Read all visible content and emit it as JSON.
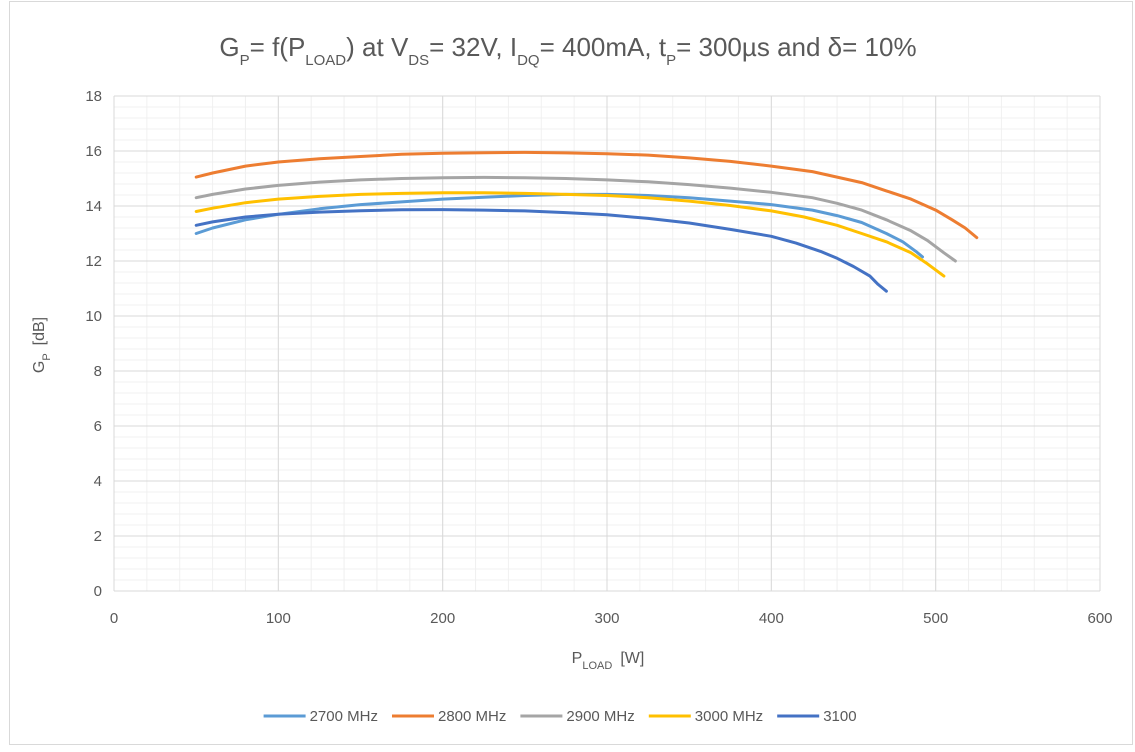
{
  "chart_data": {
    "type": "line",
    "title": {
      "parts": [
        {
          "t": "G",
          "sub": false
        },
        {
          "t": "P",
          "sub": true
        },
        {
          "t": "= f(P",
          "sub": false
        },
        {
          "t": "LOAD",
          "sub": true
        },
        {
          "t": ") at V",
          "sub": false
        },
        {
          "t": "DS",
          "sub": true
        },
        {
          "t": "= 32V, I",
          "sub": false
        },
        {
          "t": "DQ",
          "sub": true
        },
        {
          "t": "= 400mA, t",
          "sub": false
        },
        {
          "t": "P",
          "sub": true
        },
        {
          "t": "= 300µs and δ= 10%",
          "sub": false
        }
      ]
    },
    "xlabel": {
      "main": "P",
      "sub": "LOAD",
      "unit": "[W]"
    },
    "ylabel": {
      "main": "G",
      "sub": "P",
      "unit": "[dB]"
    },
    "xlim": [
      0,
      600
    ],
    "ylim": [
      0,
      18
    ],
    "x_ticks": [
      0,
      100,
      200,
      300,
      400,
      500,
      600
    ],
    "y_ticks": [
      0,
      2,
      4,
      6,
      8,
      10,
      12,
      14,
      16,
      18
    ],
    "grid": true,
    "minor_grid": true,
    "legend_position": "bottom",
    "series": [
      {
        "name": "2700 MHz",
        "color": "#5B9BD5",
        "points": [
          [
            50,
            13.0
          ],
          [
            60,
            13.2
          ],
          [
            80,
            13.5
          ],
          [
            100,
            13.7
          ],
          [
            125,
            13.9
          ],
          [
            150,
            14.05
          ],
          [
            175,
            14.15
          ],
          [
            200,
            14.25
          ],
          [
            225,
            14.32
          ],
          [
            250,
            14.38
          ],
          [
            275,
            14.42
          ],
          [
            300,
            14.42
          ],
          [
            325,
            14.38
          ],
          [
            350,
            14.3
          ],
          [
            375,
            14.18
          ],
          [
            400,
            14.05
          ],
          [
            425,
            13.85
          ],
          [
            440,
            13.65
          ],
          [
            455,
            13.4
          ],
          [
            470,
            13.0
          ],
          [
            480,
            12.7
          ],
          [
            488,
            12.35
          ],
          [
            492,
            12.15
          ]
        ]
      },
      {
        "name": "2800 MHz",
        "color": "#ED7D31",
        "points": [
          [
            50,
            15.05
          ],
          [
            60,
            15.2
          ],
          [
            80,
            15.45
          ],
          [
            100,
            15.6
          ],
          [
            125,
            15.72
          ],
          [
            150,
            15.8
          ],
          [
            175,
            15.88
          ],
          [
            200,
            15.92
          ],
          [
            225,
            15.94
          ],
          [
            250,
            15.95
          ],
          [
            275,
            15.93
          ],
          [
            300,
            15.9
          ],
          [
            325,
            15.85
          ],
          [
            350,
            15.75
          ],
          [
            375,
            15.62
          ],
          [
            400,
            15.45
          ],
          [
            425,
            15.25
          ],
          [
            440,
            15.05
          ],
          [
            455,
            14.85
          ],
          [
            470,
            14.55
          ],
          [
            485,
            14.25
          ],
          [
            500,
            13.85
          ],
          [
            510,
            13.5
          ],
          [
            518,
            13.2
          ],
          [
            525,
            12.85
          ]
        ]
      },
      {
        "name": "2900 MHz",
        "color": "#A5A5A5",
        "points": [
          [
            50,
            14.3
          ],
          [
            60,
            14.42
          ],
          [
            80,
            14.62
          ],
          [
            100,
            14.75
          ],
          [
            125,
            14.87
          ],
          [
            150,
            14.95
          ],
          [
            175,
            15.0
          ],
          [
            200,
            15.03
          ],
          [
            225,
            15.04
          ],
          [
            250,
            15.03
          ],
          [
            275,
            15.0
          ],
          [
            300,
            14.95
          ],
          [
            325,
            14.88
          ],
          [
            350,
            14.78
          ],
          [
            375,
            14.65
          ],
          [
            400,
            14.5
          ],
          [
            425,
            14.3
          ],
          [
            440,
            14.1
          ],
          [
            455,
            13.85
          ],
          [
            470,
            13.5
          ],
          [
            485,
            13.1
          ],
          [
            495,
            12.75
          ],
          [
            505,
            12.3
          ],
          [
            512,
            12.0
          ]
        ]
      },
      {
        "name": "3000 MHz",
        "color": "#FFC000",
        "points": [
          [
            50,
            13.8
          ],
          [
            60,
            13.92
          ],
          [
            80,
            14.12
          ],
          [
            100,
            14.25
          ],
          [
            125,
            14.35
          ],
          [
            150,
            14.42
          ],
          [
            175,
            14.46
          ],
          [
            200,
            14.48
          ],
          [
            225,
            14.48
          ],
          [
            250,
            14.46
          ],
          [
            275,
            14.42
          ],
          [
            300,
            14.38
          ],
          [
            325,
            14.3
          ],
          [
            350,
            14.18
          ],
          [
            375,
            14.02
          ],
          [
            400,
            13.82
          ],
          [
            420,
            13.6
          ],
          [
            440,
            13.3
          ],
          [
            455,
            13.0
          ],
          [
            470,
            12.7
          ],
          [
            485,
            12.3
          ],
          [
            495,
            11.9
          ],
          [
            505,
            11.45
          ]
        ]
      },
      {
        "name": "3100",
        "color": "#4472C4",
        "points": [
          [
            50,
            13.3
          ],
          [
            60,
            13.42
          ],
          [
            80,
            13.6
          ],
          [
            100,
            13.7
          ],
          [
            125,
            13.78
          ],
          [
            150,
            13.83
          ],
          [
            175,
            13.86
          ],
          [
            200,
            13.87
          ],
          [
            225,
            13.85
          ],
          [
            250,
            13.82
          ],
          [
            275,
            13.76
          ],
          [
            300,
            13.68
          ],
          [
            325,
            13.55
          ],
          [
            350,
            13.38
          ],
          [
            375,
            13.15
          ],
          [
            400,
            12.9
          ],
          [
            415,
            12.65
          ],
          [
            430,
            12.35
          ],
          [
            440,
            12.1
          ],
          [
            450,
            11.8
          ],
          [
            460,
            11.45
          ],
          [
            465,
            11.15
          ],
          [
            470,
            10.9
          ]
        ]
      }
    ]
  }
}
